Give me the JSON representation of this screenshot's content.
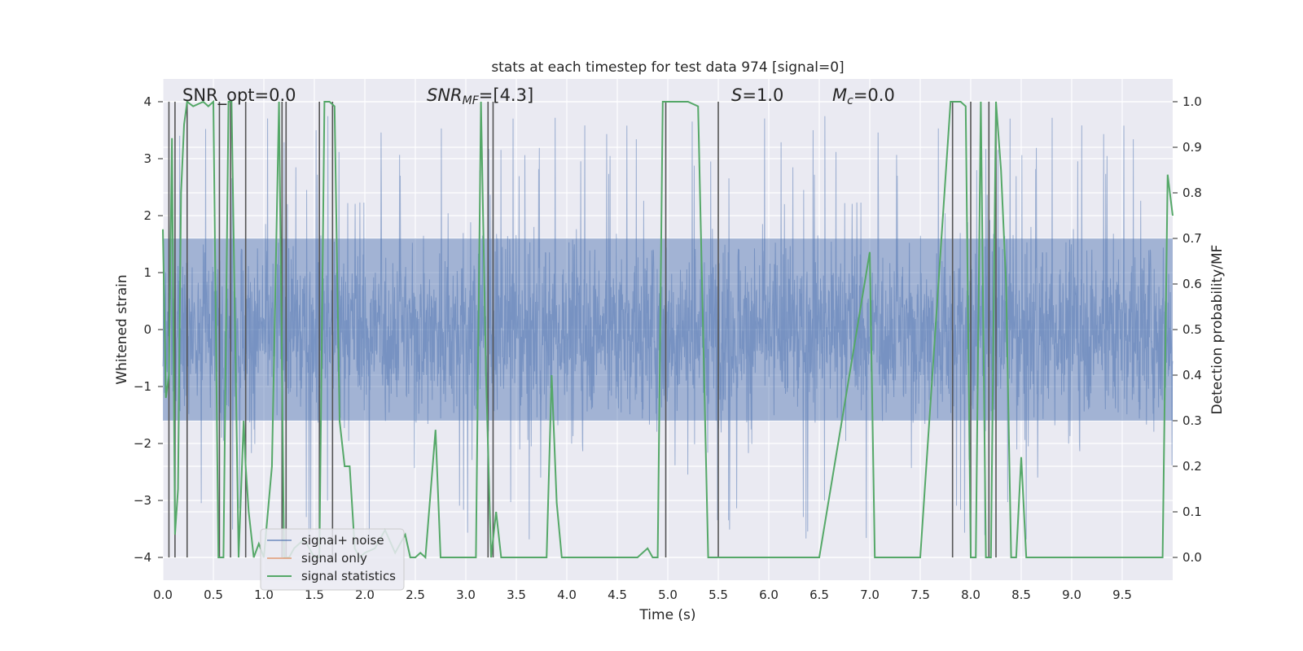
{
  "chart_data": {
    "type": "line",
    "title": "stats at each timestep for test data 974 [signal=0]",
    "xlabel": "Time (s)",
    "ylabel": "Whitened strain",
    "y2label": "Detection probability/MF",
    "xlim": [
      0,
      10
    ],
    "ylim": [
      -4.4,
      4.4
    ],
    "y2lim": [
      -0.05,
      1.05
    ],
    "grid": true,
    "xticks": [
      "0.0",
      "0.5",
      "1.0",
      "1.5",
      "2.0",
      "2.5",
      "3.0",
      "3.5",
      "4.0",
      "4.5",
      "5.0",
      "5.5",
      "6.0",
      "6.5",
      "7.0",
      "7.5",
      "8.0",
      "8.5",
      "9.0",
      "9.5"
    ],
    "yticks": [
      "4",
      "3",
      "2",
      "1",
      "0",
      "−1",
      "−2",
      "−3",
      "−4"
    ],
    "y2ticks": [
      "1.0",
      "0.9",
      "0.8",
      "0.7",
      "0.6",
      "0.5",
      "0.4",
      "0.3",
      "0.2",
      "0.1",
      "0.0"
    ],
    "annotations": {
      "snr_opt": "SNR_opt=0.0",
      "snr_mf_prefix": "SNR",
      "snr_mf_sub": "MF",
      "snr_mf_value": "=[4.3]",
      "s_label": "S",
      "s_value": "=1.0",
      "mc_label": "M",
      "mc_sub": "c",
      "mc_value": "=0.0"
    },
    "legend": {
      "placement": "lower-left",
      "entries": [
        "signal+ noise",
        "signal only",
        "signal statistics"
      ]
    },
    "colors": {
      "background": "#eaeaf2",
      "noise": "#4c72b0",
      "signal": "#dd8452",
      "statistics": "#55a868",
      "vlines": "#555555"
    },
    "series": [
      {
        "name": "signal+ noise",
        "axis": "left",
        "description_envelope": {
          "typical_range": [
            -1.6,
            1.6
          ],
          "spike_range": [
            -3.7,
            3.9
          ]
        }
      },
      {
        "name": "signal only",
        "axis": "left",
        "values": []
      },
      {
        "name": "signal statistics",
        "axis": "right",
        "x": [
          0.0,
          0.03,
          0.06,
          0.09,
          0.12,
          0.15,
          0.18,
          0.21,
          0.24,
          0.3,
          0.4,
          0.45,
          0.5,
          0.55,
          0.57,
          0.6,
          0.65,
          0.68,
          0.75,
          0.8,
          0.82,
          0.85,
          0.9,
          0.95,
          1.0,
          1.08,
          1.15,
          1.2,
          1.22,
          1.25,
          1.3,
          1.4,
          1.5,
          1.55,
          1.6,
          1.65,
          1.7,
          1.75,
          1.8,
          1.85,
          1.9,
          1.95,
          2.0,
          2.1,
          2.2,
          2.3,
          2.4,
          2.45,
          2.5,
          2.55,
          2.6,
          2.7,
          2.75,
          2.8,
          2.85,
          2.9,
          2.95,
          3.0,
          3.1,
          3.15,
          3.2,
          3.25,
          3.3,
          3.35,
          3.4,
          3.5,
          3.6,
          3.7,
          3.8,
          3.85,
          3.9,
          3.95,
          4.0,
          4.1,
          4.3,
          4.5,
          4.7,
          4.8,
          4.85,
          4.9,
          4.95,
          5.0,
          5.05,
          5.1,
          5.2,
          5.3,
          5.4,
          5.45,
          5.5,
          5.55,
          5.6,
          5.8,
          6.0,
          6.5,
          7.0,
          7.05,
          7.1,
          7.15,
          7.2,
          7.5,
          7.8,
          7.85,
          7.9,
          7.95,
          8.0,
          8.05,
          8.1,
          8.15,
          8.2,
          8.25,
          8.3,
          8.35,
          8.4,
          8.45,
          8.5,
          8.55,
          8.6,
          8.65,
          8.7,
          8.75,
          9.0,
          9.5,
          9.9,
          9.95,
          10.0
        ],
        "values": [
          0.72,
          0.35,
          0.4,
          0.92,
          0.05,
          0.15,
          0.8,
          0.95,
          1.0,
          0.99,
          1.0,
          0.99,
          1.0,
          0.0,
          0.0,
          0.0,
          1.0,
          1.0,
          0.0,
          0.3,
          0.2,
          0.1,
          0.0,
          0.03,
          0.0,
          0.2,
          1.0,
          0.0,
          0.0,
          0.0,
          0.02,
          0.04,
          0.0,
          0.0,
          1.0,
          1.0,
          0.99,
          0.3,
          0.2,
          0.2,
          0.02,
          0.0,
          0.01,
          0.02,
          0.06,
          0.01,
          0.05,
          0.0,
          0.0,
          0.01,
          0.0,
          0.28,
          0.0,
          0.0,
          0.0,
          0.0,
          0.0,
          0.0,
          0.0,
          1.0,
          0.4,
          0.0,
          0.1,
          0.0,
          0.0,
          0.0,
          0.0,
          0.0,
          0.0,
          0.4,
          0.12,
          0.0,
          0.0,
          0.0,
          0.0,
          0.0,
          0.0,
          0.02,
          0.0,
          0.0,
          1.0,
          1.0,
          1.0,
          1.0,
          1.0,
          0.99,
          0.0,
          0.0,
          0.0,
          0.0,
          0.0,
          0.0,
          0.0,
          0.0,
          0.67,
          0.0,
          0.0,
          0.0,
          0.0,
          0.0,
          1.0,
          1.0,
          1.0,
          0.99,
          0.0,
          0.0,
          1.0,
          0.0,
          0.0,
          1.0,
          0.85,
          0.6,
          0.0,
          0.0,
          0.22,
          0.0,
          0.0,
          0.0,
          0.0,
          0.0,
          0.0,
          0.0,
          0.0,
          0.84,
          0.75
        ]
      }
    ],
    "vertical_lines_x": [
      0.06,
      0.12,
      0.24,
      0.56,
      0.67,
      0.82,
      1.18,
      1.22,
      1.55,
      1.68,
      3.22,
      3.27,
      4.98,
      5.5,
      7.82,
      8.0,
      8.18,
      8.25
    ]
  }
}
